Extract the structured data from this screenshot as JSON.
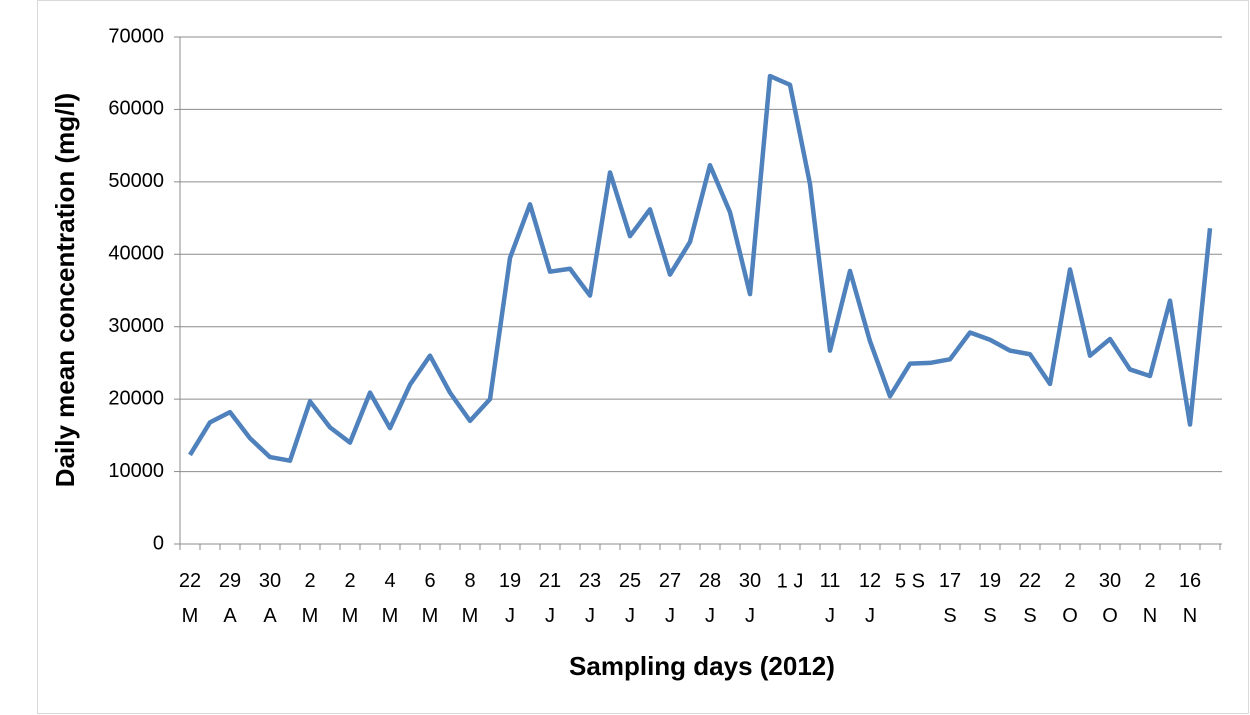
{
  "chart_data": {
    "type": "line",
    "x_label": "Sampling days (2012)",
    "y_label": "Daily mean concentration  (mg/l)",
    "categories": [
      "22\nM",
      null,
      "29\nA",
      null,
      "30\nA",
      null,
      "2\nM",
      null,
      "2\nM",
      null,
      "4\nM",
      null,
      "6\nM",
      null,
      "8\nM",
      null,
      "19\nJ",
      null,
      "21\nJ",
      null,
      "23\nJ",
      null,
      "25\nJ",
      null,
      "27\nJ",
      null,
      "28\nJ",
      null,
      "30\nJ",
      null,
      "1 J",
      null,
      "11\nJ",
      null,
      "12\nJ",
      null,
      "5 S",
      null,
      "17\nS",
      null,
      "19\nS",
      null,
      "22\nS",
      null,
      "2\nO",
      null,
      "30\nO",
      null,
      "2\nN",
      null,
      "16\nN",
      null
    ],
    "series": [
      {
        "name": "Daily mean concentration",
        "color": "#4f81bd",
        "values": [
          12300,
          16800,
          18200,
          14600,
          12000,
          11500,
          19700,
          16100,
          14000,
          20900,
          16000,
          22000,
          26000,
          20900,
          17000,
          20000,
          39500,
          46900,
          37600,
          38000,
          34300,
          51300,
          42500,
          46200,
          37200,
          41700,
          52300,
          45800,
          34500,
          64600,
          63400,
          49700,
          26700,
          37700,
          28000,
          20400,
          24900,
          25000,
          25500,
          29200,
          28200,
          26700,
          26200,
          22100,
          37900,
          26000,
          28300,
          24100,
          23200,
          33600,
          16500,
          43600
        ]
      }
    ],
    "ylim": [
      0,
      70000
    ],
    "yticks": [
      0,
      10000,
      20000,
      30000,
      40000,
      50000,
      60000,
      70000
    ],
    "grid": true
  }
}
